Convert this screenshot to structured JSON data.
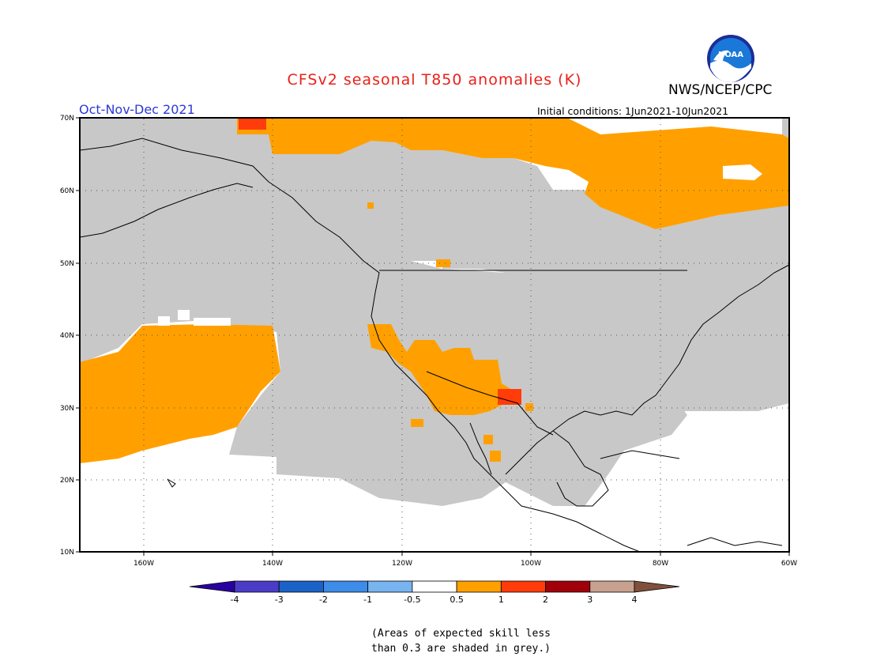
{
  "title": "CFSv2 seasonal T850 anomalies (K)",
  "agency": "NWS/NCEP/CPC",
  "logo_text": "NOAA",
  "season": "Oct-Nov-Dec 2021",
  "initial_conditions": "Initial conditions: 1Jun2021-10Jun2021",
  "lat_labels": [
    "70N",
    "60N",
    "50N",
    "40N",
    "30N",
    "20N",
    "10N"
  ],
  "lon_labels": [
    "160W",
    "140W",
    "120W",
    "100W",
    "80W",
    "60W"
  ],
  "legend": {
    "colors": [
      "#2a00a0",
      "#4b3cc8",
      "#1a62c8",
      "#3c8ce8",
      "#78b4f0",
      "#ffffff",
      "#ffa000",
      "#ff3c0a",
      "#a0000a",
      "#c8a090",
      "#80503c"
    ],
    "labels": [
      "-4",
      "-3",
      "-2",
      "-1",
      "-0.5",
      "0.5",
      "1",
      "2",
      "3",
      "4"
    ]
  },
  "note_lines": [
    "(Areas of expected skill less",
    "than 0.3 are shaded in grey.)"
  ],
  "colors": {
    "grey": "#c8c8c8",
    "warm1": "#ffa000",
    "warm2": "#ff3c0a",
    "title": "#e8211a",
    "season": "#2b3ad6"
  }
}
